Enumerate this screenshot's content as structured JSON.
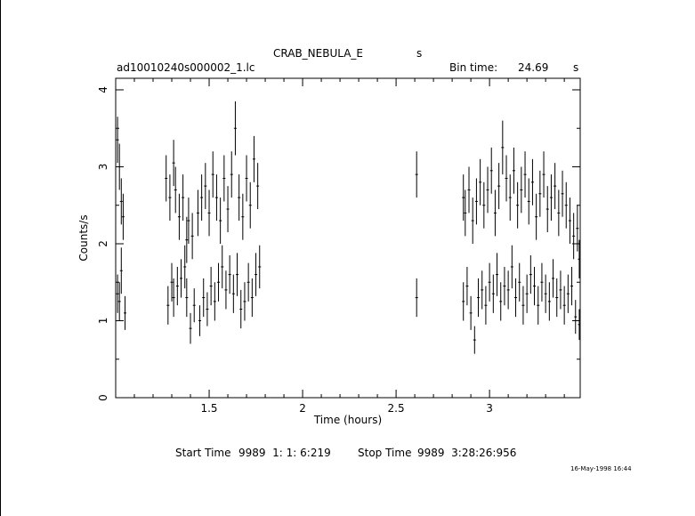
{
  "header": {
    "object": "CRAB_NEBULA_E",
    "object_unit": "s",
    "filename": "ad10010240s000002_1.lc",
    "bin_label": "Bin time:",
    "bin_value": "24.69",
    "bin_unit": "s"
  },
  "footer": {
    "start_label": "Start Time",
    "start_value": "9989  1: 1: 6:219",
    "stop_label": "Stop Time",
    "stop_value": "9989  3:28:26:956",
    "stamp": "16-May-1998 16:44"
  },
  "chart_data": {
    "type": "scatter",
    "xlabel": "Time (hours)",
    "ylabel": "Counts/s",
    "xlim": [
      1.0,
      3.485
    ],
    "ylim": [
      0,
      4.15
    ],
    "xticks": [
      1.5,
      2,
      2.5,
      3
    ],
    "xtick_labels": [
      "1.5",
      "2",
      "2.5",
      "3"
    ],
    "yticks": [
      0,
      1,
      2,
      3,
      4
    ],
    "ytick_labels": [
      "0",
      "1",
      "2",
      "3",
      "4"
    ],
    "grid": false,
    "error_bars": true,
    "series": [
      {
        "points": [
          [
            1.01,
            3.35,
            0.3
          ],
          [
            1.01,
            1.35,
            0.25
          ],
          [
            1.02,
            3.0,
            0.3
          ],
          [
            1.02,
            1.25,
            0.25
          ],
          [
            1.03,
            2.55,
            0.3
          ],
          [
            1.03,
            1.65,
            0.3
          ],
          [
            1.04,
            2.35,
            0.3
          ],
          [
            1.05,
            1.1,
            0.22
          ],
          [
            1.27,
            2.85,
            0.3
          ],
          [
            1.28,
            1.2,
            0.25
          ],
          [
            1.29,
            2.6,
            0.3
          ],
          [
            1.3,
            1.5,
            0.25
          ],
          [
            1.31,
            3.05,
            0.3
          ],
          [
            1.31,
            1.3,
            0.25
          ],
          [
            1.32,
            2.7,
            0.3
          ],
          [
            1.33,
            1.45,
            0.25
          ],
          [
            1.34,
            2.35,
            0.3
          ],
          [
            1.35,
            1.55,
            0.25
          ],
          [
            1.36,
            2.6,
            0.3
          ],
          [
            1.37,
            1.7,
            0.28
          ],
          [
            1.38,
            2.05,
            0.3
          ],
          [
            1.38,
            1.3,
            0.25
          ],
          [
            1.39,
            2.3,
            0.3
          ],
          [
            1.4,
            0.9,
            0.2
          ],
          [
            1.41,
            2.1,
            0.3
          ],
          [
            1.42,
            1.2,
            0.22
          ],
          [
            1.44,
            2.4,
            0.3
          ],
          [
            1.45,
            1.0,
            0.2
          ],
          [
            1.46,
            2.6,
            0.3
          ],
          [
            1.47,
            1.3,
            0.25
          ],
          [
            1.48,
            2.75,
            0.3
          ],
          [
            1.49,
            1.15,
            0.22
          ],
          [
            1.5,
            2.4,
            0.3
          ],
          [
            1.51,
            1.45,
            0.25
          ],
          [
            1.52,
            2.9,
            0.3
          ],
          [
            1.53,
            1.25,
            0.25
          ],
          [
            1.54,
            2.6,
            0.3
          ],
          [
            1.55,
            1.5,
            0.25
          ],
          [
            1.56,
            2.3,
            0.3
          ],
          [
            1.57,
            1.7,
            0.28
          ],
          [
            1.58,
            2.85,
            0.3
          ],
          [
            1.59,
            1.4,
            0.25
          ],
          [
            1.6,
            2.45,
            0.3
          ],
          [
            1.61,
            1.6,
            0.25
          ],
          [
            1.62,
            2.9,
            0.3
          ],
          [
            1.63,
            1.35,
            0.25
          ],
          [
            1.64,
            3.5,
            0.35
          ],
          [
            1.65,
            1.6,
            0.28
          ],
          [
            1.66,
            2.6,
            0.3
          ],
          [
            1.67,
            1.15,
            0.25
          ],
          [
            1.68,
            2.35,
            0.3
          ],
          [
            1.69,
            1.25,
            0.25
          ],
          [
            1.7,
            2.85,
            0.3
          ],
          [
            1.71,
            1.5,
            0.25
          ],
          [
            1.72,
            2.5,
            0.3
          ],
          [
            1.73,
            1.3,
            0.25
          ],
          [
            1.74,
            3.1,
            0.3
          ],
          [
            1.75,
            1.6,
            0.28
          ],
          [
            1.76,
            2.75,
            0.3
          ],
          [
            1.77,
            1.7,
            0.28
          ],
          [
            2.61,
            2.9,
            0.3
          ],
          [
            2.61,
            1.3,
            0.25
          ],
          [
            2.86,
            2.6,
            0.3
          ],
          [
            2.86,
            1.25,
            0.25
          ],
          [
            2.87,
            2.4,
            0.3
          ],
          [
            2.88,
            1.45,
            0.25
          ],
          [
            2.89,
            2.7,
            0.3
          ],
          [
            2.9,
            1.1,
            0.22
          ],
          [
            2.91,
            2.3,
            0.3
          ],
          [
            2.92,
            0.75,
            0.18
          ],
          [
            2.93,
            2.55,
            0.3
          ],
          [
            2.94,
            1.3,
            0.25
          ],
          [
            2.95,
            2.8,
            0.3
          ],
          [
            2.96,
            1.4,
            0.25
          ],
          [
            2.97,
            2.5,
            0.3
          ],
          [
            2.98,
            1.2,
            0.25
          ],
          [
            2.99,
            2.7,
            0.3
          ],
          [
            3.0,
            1.5,
            0.25
          ],
          [
            3.01,
            2.95,
            0.3
          ],
          [
            3.02,
            1.35,
            0.25
          ],
          [
            3.03,
            2.4,
            0.3
          ],
          [
            3.04,
            1.6,
            0.28
          ],
          [
            3.05,
            2.75,
            0.3
          ],
          [
            3.06,
            1.25,
            0.25
          ],
          [
            3.07,
            3.25,
            0.35
          ],
          [
            3.08,
            1.45,
            0.25
          ],
          [
            3.09,
            2.85,
            0.3
          ],
          [
            3.1,
            1.4,
            0.25
          ],
          [
            3.11,
            2.6,
            0.3
          ],
          [
            3.12,
            1.7,
            0.28
          ],
          [
            3.13,
            2.95,
            0.3
          ],
          [
            3.14,
            1.3,
            0.25
          ],
          [
            3.15,
            2.5,
            0.3
          ],
          [
            3.16,
            1.5,
            0.25
          ],
          [
            3.17,
            2.7,
            0.3
          ],
          [
            3.18,
            1.2,
            0.25
          ],
          [
            3.19,
            2.9,
            0.3
          ],
          [
            3.2,
            1.35,
            0.25
          ],
          [
            3.21,
            2.55,
            0.3
          ],
          [
            3.22,
            1.6,
            0.25
          ],
          [
            3.23,
            2.8,
            0.3
          ],
          [
            3.24,
            1.45,
            0.25
          ],
          [
            3.25,
            2.35,
            0.3
          ],
          [
            3.26,
            1.2,
            0.25
          ],
          [
            3.27,
            2.65,
            0.3
          ],
          [
            3.28,
            1.5,
            0.25
          ],
          [
            3.29,
            2.9,
            0.3
          ],
          [
            3.3,
            1.35,
            0.25
          ],
          [
            3.31,
            2.45,
            0.3
          ],
          [
            3.32,
            1.25,
            0.25
          ],
          [
            3.33,
            2.6,
            0.3
          ],
          [
            3.34,
            1.55,
            0.25
          ],
          [
            3.35,
            2.75,
            0.3
          ],
          [
            3.36,
            1.3,
            0.25
          ],
          [
            3.37,
            2.4,
            0.3
          ],
          [
            3.38,
            1.4,
            0.25
          ],
          [
            3.39,
            2.65,
            0.3
          ],
          [
            3.4,
            1.2,
            0.25
          ],
          [
            3.41,
            2.5,
            0.3
          ],
          [
            3.42,
            1.35,
            0.25
          ],
          [
            3.43,
            2.3,
            0.3
          ],
          [
            3.44,
            1.45,
            0.25
          ],
          [
            3.45,
            2.1,
            0.3
          ],
          [
            3.46,
            1.05,
            0.22
          ],
          [
            3.47,
            2.2,
            0.3
          ],
          [
            3.48,
            0.95,
            0.2
          ],
          [
            3.48,
            1.8,
            0.25
          ]
        ]
      }
    ]
  }
}
